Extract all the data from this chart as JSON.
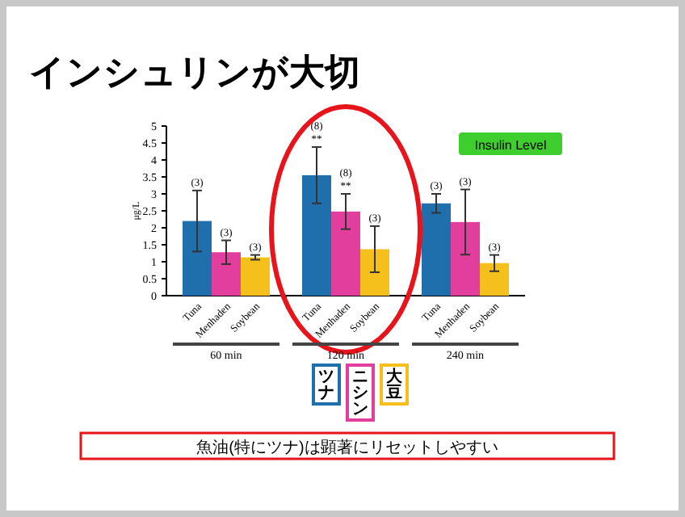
{
  "chart_data": {
    "type": "bar",
    "title": "インシュリンが大切",
    "ylabel": "μg/L",
    "categories": [
      "Tuna",
      "Menhaden",
      "Soybean",
      "Tuna",
      "Menhaden",
      "Soybean",
      "Tuna",
      "Menhaden",
      "Soybean"
    ],
    "values": [
      2.2,
      1.28,
      1.13,
      3.55,
      2.48,
      1.37,
      2.72,
      2.17,
      0.96
    ],
    "colors": [
      "#1f6fad",
      "#e23e9e",
      "#f5c01c",
      "#1f6fad",
      "#e23e9e",
      "#f5c01c",
      "#1f6fad",
      "#e23e9e",
      "#f5c01c"
    ],
    "errors": [
      0.9,
      0.35,
      0.07,
      0.83,
      0.52,
      0.68,
      0.28,
      0.96,
      0.24
    ],
    "ylim": [
      0,
      5
    ],
    "yticks": [
      0,
      0.5,
      1,
      1.5,
      2,
      2.5,
      3,
      3.5,
      4,
      4.5,
      5
    ],
    "annotations": [
      "(3)",
      "(3)",
      "(3)",
      "(8)\n**",
      "(8)\n**",
      "(3)",
      "(3)",
      "(3)",
      "(3)",
      "60 min",
      "120 min",
      "240 min",
      "Insulin Level",
      "ツナ",
      "ニシン",
      "大豆",
      "魚油(特にツナ)は顕著にリセットしやすい"
    ]
  }
}
